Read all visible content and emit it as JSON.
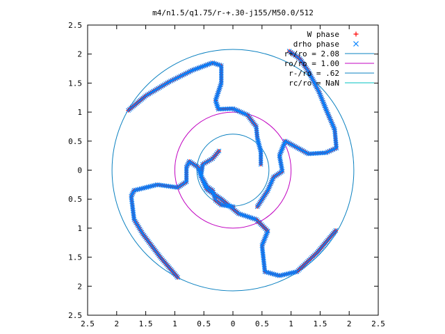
{
  "chart_data": {
    "type": "scatter",
    "title": "m4/n1.5/q1.75/r-+.30-j155/M50.0/512",
    "xlabel": "",
    "ylabel": "",
    "xlim": [
      -2.5,
      2.5
    ],
    "ylim": [
      -2.5,
      2.5
    ],
    "x_ticks": [
      -2.5,
      -2,
      -1.5,
      -1,
      -0.5,
      0,
      0.5,
      1,
      1.5,
      2,
      2.5
    ],
    "y_ticks": [
      -2.5,
      -2,
      -1.5,
      -1,
      -0.5,
      0,
      0.5,
      1,
      1.5,
      2,
      2.5
    ],
    "x_tick_labels": [
      "2.5",
      "2",
      "1.5",
      "1",
      "0.5",
      "0",
      "0.5",
      "1",
      "1.5",
      "2",
      "2.5"
    ],
    "y_tick_labels": [
      "2.5",
      "2",
      "1.5",
      "1",
      "0.5",
      "0",
      "0.5",
      "1",
      "1.5",
      "2",
      "2.5"
    ],
    "grid": false,
    "legend_position": "top-right",
    "legend": [
      {
        "label": "W phase",
        "kind": "marker-plus",
        "color": "#ff0000"
      },
      {
        "label": "drho phase",
        "kind": "marker-cross",
        "color": "#0080ff"
      },
      {
        "label": "r+/ro = 2.08",
        "kind": "line",
        "color": "#0a80c0"
      },
      {
        "label": "ro/ro = 1.00",
        "kind": "line",
        "color": "#c000c0"
      },
      {
        "label": "r-/ro = .62",
        "kind": "line",
        "color": "#0a80c0"
      },
      {
        "label": "rc/ro = NaN",
        "kind": "line",
        "color": "#00c0c0"
      }
    ],
    "circles": [
      {
        "name": "r+/ro = 2.08",
        "radius": 2.08,
        "color": "#0a80c0"
      },
      {
        "name": "ro/ro = 1.00",
        "radius": 1.0,
        "color": "#c000c0"
      },
      {
        "name": "r-/ro = .62",
        "radius": 0.62,
        "color": "#0a80c0"
      }
    ],
    "series": [
      {
        "name": "W phase",
        "marker": "plus",
        "color": "#ff0000",
        "arms": [
          [
            [
              -1.8,
              1.03
            ],
            [
              -1.5,
              1.28
            ],
            [
              -1.1,
              1.52
            ],
            [
              -0.7,
              1.72
            ],
            [
              -0.35,
              1.85
            ],
            [
              -0.2,
              1.8
            ],
            [
              -0.2,
              1.5
            ],
            [
              -0.3,
              1.2
            ],
            [
              -0.25,
              1.05
            ],
            [
              0.0,
              1.06
            ],
            [
              0.25,
              0.95
            ],
            [
              0.4,
              0.75
            ],
            [
              0.42,
              0.55
            ],
            [
              0.48,
              0.32
            ],
            [
              0.48,
              0.1
            ]
          ],
          [
            [
              0.42,
              -0.63
            ],
            [
              0.6,
              -0.35
            ],
            [
              0.7,
              -0.12
            ],
            [
              0.85,
              -0.02
            ],
            [
              0.8,
              0.25
            ],
            [
              0.9,
              0.5
            ],
            [
              1.3,
              0.28
            ],
            [
              1.6,
              0.3
            ],
            [
              1.78,
              0.38
            ],
            [
              1.75,
              0.7
            ],
            [
              1.6,
              1.05
            ],
            [
              1.48,
              1.35
            ],
            [
              1.3,
              1.7
            ],
            [
              1.15,
              1.92
            ],
            [
              0.97,
              2.05
            ]
          ],
          [
            [
              0.0,
              -0.63
            ],
            [
              -0.2,
              -0.6
            ],
            [
              -0.3,
              -0.52
            ],
            [
              -0.32,
              -0.45
            ],
            [
              -0.35,
              -0.35
            ],
            [
              -0.45,
              -0.28
            ],
            [
              -0.55,
              -0.1
            ],
            [
              -0.6,
              0.05
            ],
            [
              -0.75,
              0.15
            ],
            [
              -0.8,
              0.05
            ],
            [
              -0.8,
              -0.2
            ],
            [
              -0.95,
              -0.3
            ],
            [
              -1.3,
              -0.25
            ],
            [
              -1.7,
              -0.35
            ],
            [
              -1.75,
              -0.45
            ],
            [
              -1.7,
              -0.85
            ],
            [
              -1.55,
              -1.1
            ],
            [
              -1.25,
              -1.5
            ],
            [
              -0.95,
              -1.85
            ]
          ],
          [
            [
              -0.24,
              0.33
            ],
            [
              -0.35,
              0.2
            ],
            [
              -0.52,
              0.1
            ],
            [
              -0.55,
              -0.1
            ],
            [
              -0.45,
              -0.33
            ],
            [
              -0.2,
              -0.5
            ],
            [
              0.1,
              -0.75
            ],
            [
              0.4,
              -0.85
            ],
            [
              0.6,
              -1.05
            ],
            [
              0.5,
              -1.3
            ],
            [
              0.55,
              -1.75
            ],
            [
              0.8,
              -1.82
            ],
            [
              1.1,
              -1.75
            ],
            [
              1.45,
              -1.42
            ],
            [
              1.77,
              -1.04
            ]
          ]
        ]
      },
      {
        "name": "drho phase",
        "marker": "cross",
        "color": "#0080ff",
        "arms": [
          [
            [
              -1.8,
              1.03
            ],
            [
              -1.5,
              1.28
            ],
            [
              -1.1,
              1.52
            ],
            [
              -0.7,
              1.72
            ],
            [
              -0.35,
              1.85
            ],
            [
              -0.2,
              1.8
            ],
            [
              -0.2,
              1.5
            ],
            [
              -0.3,
              1.2
            ],
            [
              -0.25,
              1.05
            ],
            [
              0.0,
              1.06
            ],
            [
              0.25,
              0.95
            ],
            [
              0.4,
              0.75
            ],
            [
              0.42,
              0.55
            ],
            [
              0.48,
              0.32
            ],
            [
              0.48,
              0.1
            ]
          ],
          [
            [
              0.42,
              -0.63
            ],
            [
              0.6,
              -0.35
            ],
            [
              0.7,
              -0.12
            ],
            [
              0.85,
              -0.02
            ],
            [
              0.8,
              0.25
            ],
            [
              0.9,
              0.5
            ],
            [
              1.3,
              0.28
            ],
            [
              1.6,
              0.3
            ],
            [
              1.78,
              0.38
            ],
            [
              1.75,
              0.7
            ],
            [
              1.6,
              1.05
            ],
            [
              1.48,
              1.35
            ],
            [
              1.3,
              1.7
            ],
            [
              1.15,
              1.92
            ],
            [
              0.97,
              2.05
            ]
          ],
          [
            [
              0.0,
              -0.63
            ],
            [
              -0.2,
              -0.6
            ],
            [
              -0.3,
              -0.52
            ],
            [
              -0.32,
              -0.45
            ],
            [
              -0.35,
              -0.35
            ],
            [
              -0.45,
              -0.28
            ],
            [
              -0.55,
              -0.1
            ],
            [
              -0.6,
              0.05
            ],
            [
              -0.75,
              0.15
            ],
            [
              -0.8,
              0.05
            ],
            [
              -0.8,
              -0.2
            ],
            [
              -0.95,
              -0.3
            ],
            [
              -1.3,
              -0.25
            ],
            [
              -1.7,
              -0.35
            ],
            [
              -1.75,
              -0.45
            ],
            [
              -1.7,
              -0.85
            ],
            [
              -1.55,
              -1.1
            ],
            [
              -1.25,
              -1.5
            ],
            [
              -0.95,
              -1.85
            ]
          ],
          [
            [
              -0.24,
              0.33
            ],
            [
              -0.35,
              0.2
            ],
            [
              -0.52,
              0.1
            ],
            [
              -0.55,
              -0.1
            ],
            [
              -0.45,
              -0.33
            ],
            [
              -0.2,
              -0.5
            ],
            [
              0.1,
              -0.75
            ],
            [
              0.4,
              -0.85
            ],
            [
              0.6,
              -1.05
            ],
            [
              0.5,
              -1.3
            ],
            [
              0.55,
              -1.75
            ],
            [
              0.8,
              -1.82
            ],
            [
              1.1,
              -1.75
            ],
            [
              1.45,
              -1.42
            ],
            [
              1.77,
              -1.04
            ]
          ]
        ]
      }
    ]
  }
}
